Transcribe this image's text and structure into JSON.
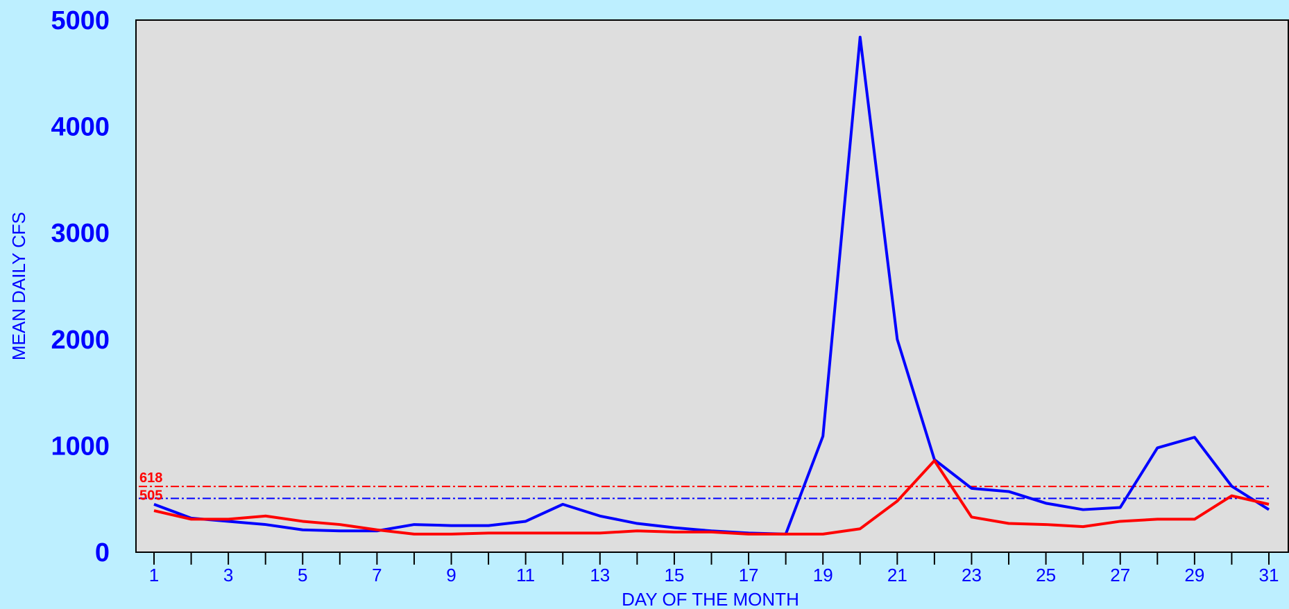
{
  "chart_data": {
    "type": "line",
    "xlabel": "DAY OF THE MONTH",
    "ylabel": "MEAN DAILY CFS",
    "xlim": [
      1,
      31
    ],
    "ylim": [
      0,
      5000
    ],
    "y_ticks": [
      0,
      1000,
      2000,
      3000,
      4000,
      5000
    ],
    "x_tick_labels": [
      1,
      3,
      5,
      7,
      9,
      11,
      13,
      15,
      17,
      19,
      21,
      23,
      25,
      27,
      29,
      31
    ],
    "x": [
      1,
      2,
      3,
      4,
      5,
      6,
      7,
      8,
      9,
      10,
      11,
      12,
      13,
      14,
      15,
      16,
      17,
      18,
      19,
      20,
      21,
      22,
      23,
      24,
      25,
      26,
      27,
      28,
      29,
      30,
      31
    ],
    "series": [
      {
        "color": "#0000FF",
        "values": [
          450,
          320,
          290,
          260,
          210,
          200,
          200,
          260,
          250,
          250,
          290,
          450,
          340,
          270,
          230,
          200,
          180,
          170,
          1090,
          4840,
          2000,
          870,
          600,
          570,
          460,
          400,
          420,
          980,
          1080,
          620,
          400
        ]
      },
      {
        "color": "#FF0000",
        "values": [
          390,
          310,
          310,
          340,
          290,
          260,
          210,
          170,
          170,
          180,
          180,
          180,
          180,
          200,
          190,
          190,
          170,
          170,
          170,
          220,
          480,
          860,
          330,
          270,
          260,
          240,
          290,
          310,
          310,
          530,
          450
        ]
      }
    ],
    "reference_lines": [
      {
        "label": "618",
        "value": 618,
        "color": "#FF0000"
      },
      {
        "label": "505",
        "value": 505,
        "color": "#0000FF"
      }
    ],
    "grid": false,
    "legend": "none",
    "plot_background": "#DEDEDE",
    "page_background": "#BDEFFF"
  }
}
